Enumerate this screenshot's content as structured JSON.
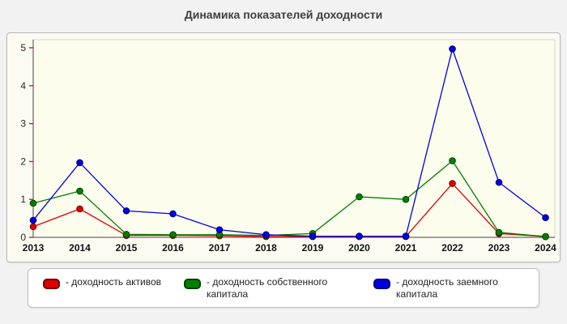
{
  "title": "Динамика показателей доходности",
  "chart_data": {
    "type": "line",
    "x": [
      "2013",
      "2014",
      "2015",
      "2016",
      "2017",
      "2018",
      "2019",
      "2020",
      "2021",
      "2022",
      "2023",
      "2024"
    ],
    "series": [
      {
        "name": "доходность активов",
        "color": "#dd0000",
        "marker_border": "#7a0000",
        "values": [
          0.28,
          0.75,
          0.05,
          0.05,
          0.04,
          0.02,
          0.02,
          0.02,
          0.02,
          1.42,
          0.1,
          0.02
        ]
      },
      {
        "name": "доходность собственного капитала",
        "color": "#008000",
        "marker_border": "#004000",
        "values": [
          0.9,
          1.22,
          0.08,
          0.07,
          0.07,
          0.05,
          0.1,
          1.07,
          1.0,
          2.02,
          0.13,
          0.02
        ]
      },
      {
        "name": "доходность заемного капитала",
        "color": "#0000e0",
        "marker_border": "#000080",
        "values": [
          0.45,
          1.97,
          0.7,
          0.62,
          0.2,
          0.07,
          0.03,
          0.03,
          0.03,
          4.97,
          1.45,
          0.52
        ]
      }
    ],
    "title": "Динамика показателей доходности",
    "xlabel": "",
    "ylabel": "",
    "ylim": [
      0,
      5
    ],
    "yticks": [
      0,
      1,
      2,
      3,
      4,
      5
    ],
    "grid": false,
    "legend_position": "bottom",
    "plot_bg": "#fdfdee",
    "axis_color": "#444444",
    "tick_color": "#cc2222"
  },
  "legend": {
    "items": [
      {
        "label": "- доходность активов",
        "color": "#dd0000",
        "border": "#7a0000"
      },
      {
        "label": "- доходность собственного капитала",
        "color": "#008000",
        "border": "#004000"
      },
      {
        "label": "- доходность заемного капитала",
        "color": "#0000e0",
        "border": "#000080"
      }
    ]
  }
}
